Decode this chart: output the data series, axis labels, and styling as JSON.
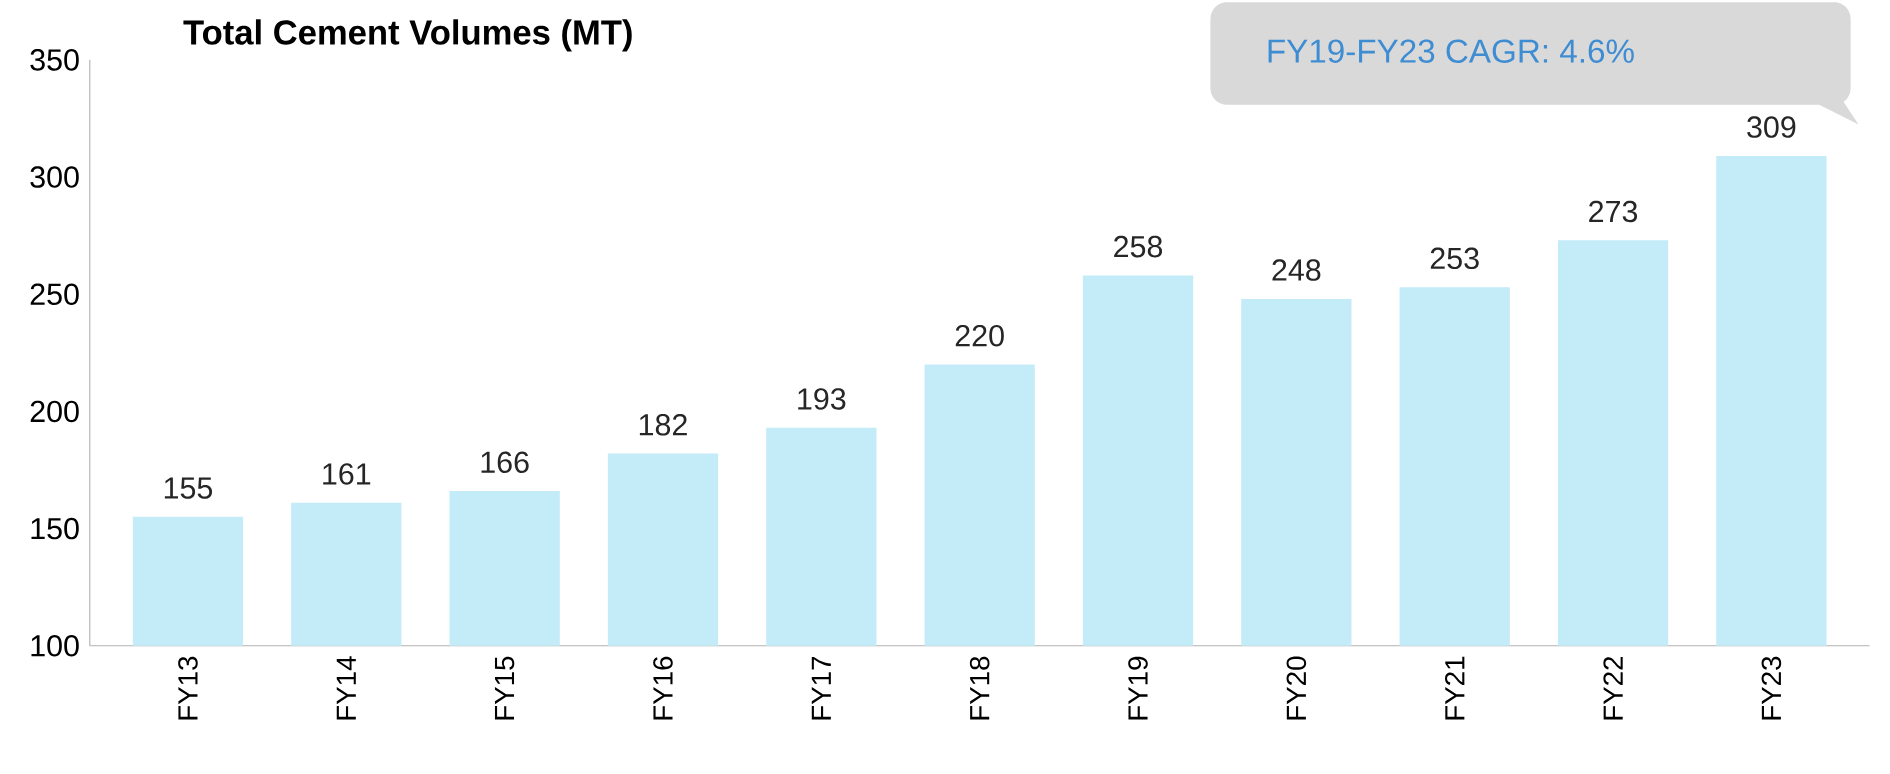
{
  "chart_data": {
    "type": "bar",
    "title": "Total Cement Volumes (MT)",
    "categories": [
      "FY13",
      "FY14",
      "FY15",
      "FY16",
      "FY17",
      "FY18",
      "FY19",
      "FY20",
      "FY21",
      "FY22",
      "FY23"
    ],
    "values": [
      155,
      161,
      166,
      182,
      193,
      220,
      258,
      248,
      253,
      273,
      309
    ],
    "color": "#c3ebf8",
    "ylim": [
      100,
      350
    ],
    "yticks": [
      100,
      150,
      200,
      250,
      300,
      350
    ],
    "data_labels": true,
    "annotations": [
      "FY19-FY23 CAGR: 4.6%"
    ]
  }
}
